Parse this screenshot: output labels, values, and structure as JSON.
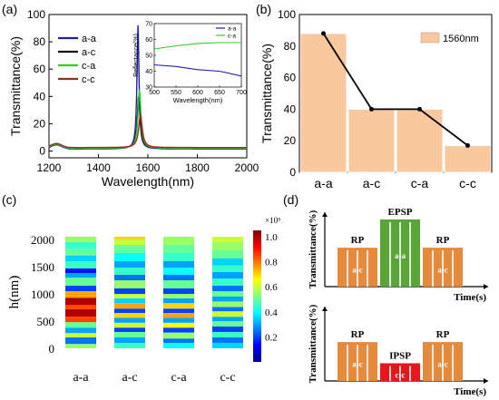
{
  "panels": {
    "a": {
      "label": "(a)"
    },
    "b": {
      "label": "(b)"
    },
    "c": {
      "label": "(c)"
    },
    "d": {
      "label": "(d)"
    }
  },
  "chart_data": [
    {
      "id": "a",
      "type": "line",
      "xlabel": "Wavelength(nm)",
      "ylabel": "Transmittance(%)",
      "xlim": [
        1200,
        2000
      ],
      "ylim": [
        -5,
        100
      ],
      "xticks": [
        "1200",
        "1400",
        "1600",
        "1800",
        "2000"
      ],
      "yticks": [
        "0",
        "20",
        "40",
        "60",
        "80",
        "100"
      ],
      "legend_position": "top-left",
      "series": [
        {
          "name": "a-a",
          "color": "#1f1fa8",
          "peak_x": 1560,
          "peak_y": 92,
          "width": 5,
          "base": 1.5
        },
        {
          "name": "a-c",
          "color": "#111111",
          "peak_x": 1563,
          "peak_y": 40,
          "width": 7,
          "base": 2
        },
        {
          "name": "c-a",
          "color": "#2fcc2f",
          "peak_x": 1566,
          "peak_y": 45,
          "width": 7,
          "base": 2
        },
        {
          "name": "c-c",
          "color": "#9b2a1e",
          "peak_x": 1570,
          "peak_y": 26,
          "width": 9,
          "base": 2.5
        }
      ],
      "inset": {
        "type": "line",
        "xlabel": "Wavelength(nm)",
        "ylabel": "Reflectance(%)",
        "xlim": [
          500,
          700
        ],
        "ylim": [
          30,
          70
        ],
        "xticks": [
          "500",
          "550",
          "600",
          "650",
          "700"
        ],
        "yticks": [
          "30",
          "40",
          "50",
          "60",
          "70"
        ],
        "series": [
          {
            "name": "a-a",
            "color": "#1f1fa8",
            "x": [
              500,
              550,
              600,
              650,
              700
            ],
            "y": [
              44,
              43,
              41,
              40,
              37
            ]
          },
          {
            "name": "c-a",
            "color": "#2fcc2f",
            "x": [
              500,
              550,
              600,
              650,
              700
            ],
            "y": [
              54,
              56,
              57.5,
              58,
              58
            ]
          }
        ]
      }
    },
    {
      "id": "b",
      "type": "bar",
      "categories": [
        "a-a",
        "a-c",
        "c-a",
        "c-c"
      ],
      "series": [
        {
          "name": "1560nm",
          "values": [
            88,
            40,
            40,
            17
          ]
        }
      ],
      "ylabel": "Transmittance(%)",
      "ylim": [
        0,
        100
      ],
      "yticks": [
        "0",
        "20",
        "40",
        "60",
        "80",
        "100"
      ],
      "bar_color": "#f9c89e",
      "line_color": "#000000",
      "legend_position": "top-right"
    },
    {
      "id": "c",
      "type": "heatmap",
      "categories": [
        "a-a",
        "a-c",
        "c-a",
        "c-c"
      ],
      "ylabel": "h(nm)",
      "ylim": [
        0,
        2050
      ],
      "yticks": [
        "0",
        "500",
        "1000",
        "1500",
        "2000"
      ],
      "colorbar": {
        "exponent": "×10⁵",
        "ticks": [
          "0.2",
          "0.4",
          "0.6",
          "0.8",
          "1.0"
        ],
        "range": [
          0,
          1.05
        ]
      },
      "columns": [
        {
          "name": "a-a",
          "bands": [
            [
              0,
              80,
              0.55
            ],
            [
              80,
              200,
              0.25
            ],
            [
              200,
              280,
              0.6
            ],
            [
              280,
              380,
              0.3
            ],
            [
              380,
              480,
              0.5
            ],
            [
              480,
              580,
              0.85
            ],
            [
              580,
              720,
              1.0
            ],
            [
              720,
              800,
              0.85
            ],
            [
              800,
              930,
              1.0
            ],
            [
              930,
              1050,
              0.75
            ],
            [
              1050,
              1150,
              0.2
            ],
            [
              1150,
              1300,
              0.5
            ],
            [
              1300,
              1380,
              0.3
            ],
            [
              1380,
              1470,
              0.15
            ],
            [
              1470,
              1600,
              0.45
            ],
            [
              1600,
              1700,
              0.35
            ],
            [
              1700,
              1820,
              0.5
            ],
            [
              1820,
              1950,
              0.45
            ],
            [
              1950,
              2050,
              0.55
            ]
          ]
        },
        {
          "name": "a-c",
          "bands": [
            [
              0,
              100,
              0.45
            ],
            [
              100,
              200,
              0.3
            ],
            [
              200,
              300,
              0.5
            ],
            [
              300,
              380,
              0.2
            ],
            [
              380,
              470,
              0.6
            ],
            [
              470,
              560,
              0.3
            ],
            [
              560,
              650,
              0.7
            ],
            [
              650,
              730,
              0.2
            ],
            [
              730,
              830,
              0.75
            ],
            [
              830,
              920,
              0.35
            ],
            [
              920,
              1000,
              0.6
            ],
            [
              1000,
              1100,
              0.2
            ],
            [
              1100,
              1250,
              0.55
            ],
            [
              1250,
              1350,
              0.25
            ],
            [
              1350,
              1480,
              0.45
            ],
            [
              1480,
              1600,
              0.3
            ],
            [
              1600,
              1750,
              0.4
            ],
            [
              1750,
              1900,
              0.5
            ],
            [
              1900,
              2000,
              0.6
            ],
            [
              2000,
              2050,
              0.7
            ]
          ]
        },
        {
          "name": "c-a",
          "bands": [
            [
              0,
              100,
              0.4
            ],
            [
              100,
              180,
              0.25
            ],
            [
              180,
              290,
              0.55
            ],
            [
              290,
              380,
              0.2
            ],
            [
              380,
              470,
              0.65
            ],
            [
              470,
              560,
              0.3
            ],
            [
              560,
              650,
              0.75
            ],
            [
              650,
              730,
              0.2
            ],
            [
              730,
              830,
              0.7
            ],
            [
              830,
              920,
              0.3
            ],
            [
              920,
              1000,
              0.55
            ],
            [
              1000,
              1100,
              0.2
            ],
            [
              1100,
              1250,
              0.5
            ],
            [
              1250,
              1350,
              0.25
            ],
            [
              1350,
              1480,
              0.4
            ],
            [
              1480,
              1600,
              0.3
            ],
            [
              1600,
              1750,
              0.45
            ],
            [
              1750,
              1900,
              0.5
            ],
            [
              1900,
              2050,
              0.55
            ]
          ]
        },
        {
          "name": "c-c",
          "bands": [
            [
              0,
              100,
              0.35
            ],
            [
              100,
              200,
              0.25
            ],
            [
              200,
              300,
              0.45
            ],
            [
              300,
              400,
              0.2
            ],
            [
              400,
              500,
              0.5
            ],
            [
              500,
              580,
              0.3
            ],
            [
              580,
              680,
              0.6
            ],
            [
              680,
              760,
              0.25
            ],
            [
              760,
              860,
              0.55
            ],
            [
              860,
              950,
              0.3
            ],
            [
              950,
              1050,
              0.5
            ],
            [
              1050,
              1150,
              0.25
            ],
            [
              1150,
              1280,
              0.45
            ],
            [
              1280,
              1400,
              0.3
            ],
            [
              1400,
              1520,
              0.45
            ],
            [
              1520,
              1650,
              0.35
            ],
            [
              1650,
              1800,
              0.5
            ],
            [
              1800,
              1950,
              0.55
            ],
            [
              1950,
              2050,
              0.6
            ]
          ]
        }
      ]
    }
  ],
  "diagram_d": {
    "top": {
      "ylabel": "Transmittance(%)",
      "xlabel": "Time(s)",
      "blocks": [
        {
          "title": "RP",
          "inner": "a-c",
          "level": 0.55,
          "color": "#e58a3a"
        },
        {
          "title": "EPSP",
          "inner": "a-a",
          "level": 0.95,
          "color": "#5aa53a"
        },
        {
          "title": "RP",
          "inner": "a-c",
          "level": 0.55,
          "color": "#e58a3a"
        }
      ]
    },
    "bottom": {
      "ylabel": "Transmittance(%)",
      "xlabel": "Time(s)",
      "blocks": [
        {
          "title": "RP",
          "inner": "a-c",
          "level": 0.55,
          "color": "#e58a3a"
        },
        {
          "title": "IPSP",
          "inner": "c-c",
          "level": 0.25,
          "color": "#e8161b"
        },
        {
          "title": "RP",
          "inner": "a-c",
          "level": 0.55,
          "color": "#e58a3a"
        }
      ]
    }
  }
}
